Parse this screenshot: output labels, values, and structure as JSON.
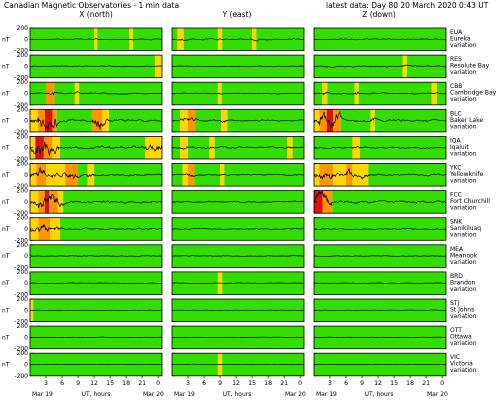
{
  "header": {
    "title": "Canadian Magnetic Observatories - 1 min data",
    "latest": "latest data:  Day  80    20 March 2020    0:43 UT"
  },
  "columns": [
    {
      "label": "X (north)"
    },
    {
      "label": "Y (east)"
    },
    {
      "label": "Z (down)"
    }
  ],
  "y_unit": "nT",
  "footer": {
    "date_start": "Mar 19",
    "date_end": "Mar 20",
    "xlabel": "UT, hours"
  },
  "colors": {
    "quiet": "#33dd00",
    "moderate": "#ffd700",
    "active": "#ff9500",
    "storm": "#dd1111",
    "trace": "#000000",
    "box": "#000000"
  },
  "chart_data": {
    "type": "line",
    "title": "Canadian Magnetic Observatories - 1 min data",
    "xlabel": "UT, hours",
    "ylabel": "nT",
    "x_ticks": [
      3,
      6,
      9,
      12,
      15,
      18,
      21,
      0
    ],
    "xlim": [
      0,
      24.72
    ],
    "ylim": [
      -200,
      200
    ],
    "y_ticks": [
      -200,
      0,
      200
    ],
    "grid": false,
    "stations": [
      {
        "code": "EUA",
        "name": "Eureka",
        "label": "variation",
        "activity": [
          [
            [
              0,
              12,
              "q"
            ],
            [
              12,
              12.6,
              "m"
            ],
            [
              12.6,
              18.6,
              "q"
            ],
            [
              18.6,
              19.3,
              "m"
            ],
            [
              19.3,
              24.72,
              "q"
            ]
          ],
          [
            [
              0,
              1,
              "q"
            ],
            [
              1,
              2.2,
              "m"
            ],
            [
              2.2,
              8.6,
              "q"
            ],
            [
              8.6,
              9.4,
              "m"
            ],
            [
              9.4,
              15,
              "q"
            ],
            [
              15,
              15.8,
              "m"
            ],
            [
              15.8,
              24.72,
              "q"
            ]
          ],
          [
            [
              0,
              24.72,
              "q"
            ]
          ]
        ],
        "amp": [
          [
            10,
            30
          ],
          [
            12,
            45
          ],
          [
            10,
            30
          ]
        ]
      },
      {
        "code": "RES",
        "name": "Resolute Bay",
        "label": "variation",
        "activity": [
          [
            [
              0,
              23.4,
              "q"
            ],
            [
              23.4,
              24.72,
              "m"
            ]
          ],
          [
            [
              0,
              24.72,
              "q"
            ]
          ],
          [
            [
              0,
              16.6,
              "q"
            ],
            [
              16.6,
              17.4,
              "m"
            ],
            [
              17.4,
              24.72,
              "q"
            ]
          ]
        ],
        "amp": [
          [
            10,
            30
          ],
          [
            8,
            25
          ],
          [
            12,
            60
          ]
        ]
      },
      {
        "code": "CBB",
        "name": "Cambridge Bay",
        "label": "variation",
        "activity": [
          [
            [
              0,
              3,
              "q"
            ],
            [
              3,
              4.6,
              "a"
            ],
            [
              4.6,
              8.4,
              "q"
            ],
            [
              8.4,
              9.2,
              "m"
            ],
            [
              9.2,
              24.72,
              "q"
            ]
          ],
          [
            [
              0,
              8.6,
              "q"
            ],
            [
              8.6,
              9.3,
              "m"
            ],
            [
              9.3,
              24.72,
              "q"
            ]
          ],
          [
            [
              0,
              1.5,
              "q"
            ],
            [
              1.5,
              2.5,
              "m"
            ],
            [
              2.5,
              7.6,
              "q"
            ],
            [
              7.6,
              8.4,
              "m"
            ],
            [
              8.4,
              22,
              "q"
            ],
            [
              22,
              23,
              "m"
            ],
            [
              23,
              24.72,
              "q"
            ]
          ]
        ],
        "amp": [
          [
            10,
            60
          ],
          [
            8,
            40
          ],
          [
            12,
            80
          ]
        ]
      },
      {
        "code": "BLC",
        "name": "Baker Lake",
        "label": "variation",
        "activity": [
          [
            [
              0,
              1.5,
              "m"
            ],
            [
              1.5,
              2.8,
              "a"
            ],
            [
              2.8,
              4.2,
              "s"
            ],
            [
              4.2,
              5,
              "a"
            ],
            [
              5,
              11.6,
              "q"
            ],
            [
              11.6,
              13.6,
              "a"
            ],
            [
              13.6,
              14.8,
              "m"
            ],
            [
              14.8,
              24.72,
              "q"
            ]
          ],
          [
            [
              0,
              1.5,
              "q"
            ],
            [
              1.5,
              3,
              "m"
            ],
            [
              3,
              4.4,
              "a"
            ],
            [
              4.4,
              9.2,
              "q"
            ],
            [
              9.2,
              10.4,
              "m"
            ],
            [
              10.4,
              24.72,
              "q"
            ]
          ],
          [
            [
              0,
              1,
              "m"
            ],
            [
              1,
              2.4,
              "a"
            ],
            [
              2.4,
              3.6,
              "s"
            ],
            [
              3.6,
              5,
              "a"
            ],
            [
              5,
              10.6,
              "q"
            ],
            [
              10.6,
              11.4,
              "m"
            ],
            [
              11.4,
              24.72,
              "q"
            ]
          ]
        ],
        "amp": [
          [
            20,
            150
          ],
          [
            15,
            70
          ],
          [
            20,
            130
          ]
        ]
      },
      {
        "code": "IQA",
        "name": "Iqaluit",
        "label": "variation",
        "activity": [
          [
            [
              0,
              1,
              "m"
            ],
            [
              1,
              2.6,
              "s"
            ],
            [
              2.6,
              4.2,
              "a"
            ],
            [
              4.2,
              5.6,
              "m"
            ],
            [
              5.6,
              21.6,
              "q"
            ],
            [
              21.6,
              24.72,
              "m"
            ]
          ],
          [
            [
              0,
              1.5,
              "q"
            ],
            [
              1.5,
              3,
              "m"
            ],
            [
              3,
              7,
              "q"
            ],
            [
              7,
              8,
              "m"
            ],
            [
              8,
              21.6,
              "q"
            ],
            [
              21.6,
              22.6,
              "m"
            ],
            [
              22.6,
              24.72,
              "q"
            ]
          ],
          [
            [
              0,
              7.2,
              "q"
            ],
            [
              7.2,
              8.6,
              "m"
            ],
            [
              8.6,
              24.72,
              "q"
            ]
          ]
        ],
        "amp": [
          [
            25,
            170
          ],
          [
            15,
            60
          ],
          [
            12,
            50
          ]
        ]
      },
      {
        "code": "YKC",
        "name": "Yellowknife",
        "label": "variation",
        "activity": [
          [
            [
              0,
              1.2,
              "m"
            ],
            [
              1.2,
              3,
              "a"
            ],
            [
              3,
              6.6,
              "m"
            ],
            [
              6.6,
              9,
              "a"
            ],
            [
              9,
              10.8,
              "q"
            ],
            [
              10.8,
              12,
              "m"
            ],
            [
              12,
              24.72,
              "q"
            ]
          ],
          [
            [
              0,
              2,
              "q"
            ],
            [
              2,
              3.2,
              "m"
            ],
            [
              3,
              4.2,
              "a"
            ],
            [
              4.2,
              9,
              "q"
            ],
            [
              9,
              9.8,
              "m"
            ],
            [
              9.8,
              24.72,
              "q"
            ]
          ],
          [
            [
              0,
              1,
              "m"
            ],
            [
              1,
              3.6,
              "a"
            ],
            [
              3.6,
              6,
              "m"
            ],
            [
              6,
              7.2,
              "a"
            ],
            [
              7.2,
              10.2,
              "m"
            ],
            [
              10.2,
              24.72,
              "q"
            ]
          ]
        ],
        "amp": [
          [
            15,
            100
          ],
          [
            10,
            50
          ],
          [
            15,
            90
          ]
        ]
      },
      {
        "code": "FCC",
        "name": "Fort Churchill",
        "label": "variation",
        "activity": [
          [
            [
              0,
              1.6,
              "m"
            ],
            [
              1.6,
              2.8,
              "a"
            ],
            [
              2.8,
              3.6,
              "s"
            ],
            [
              3.6,
              5.2,
              "a"
            ],
            [
              5.2,
              6.2,
              "m"
            ],
            [
              6.2,
              24.72,
              "q"
            ]
          ],
          [
            [
              0,
              24.72,
              "q"
            ]
          ],
          [
            [
              0,
              1.6,
              "s"
            ],
            [
              1.6,
              3.4,
              "a"
            ],
            [
              3.4,
              24.72,
              "q"
            ]
          ]
        ],
        "amp": [
          [
            20,
            140
          ],
          [
            10,
            40
          ],
          [
            20,
            120
          ]
        ]
      },
      {
        "code": "SNK",
        "name": "Sanikiluaq",
        "label": "variation",
        "activity": [
          [
            [
              0,
              1.6,
              "m"
            ],
            [
              1.6,
              3.8,
              "a"
            ],
            [
              3.8,
              5.6,
              "m"
            ],
            [
              5.6,
              24.72,
              "q"
            ]
          ],
          [
            [
              0,
              24.72,
              "q"
            ]
          ],
          [
            [
              0,
              24.72,
              "q"
            ]
          ]
        ],
        "amp": [
          [
            15,
            90
          ],
          [
            8,
            30
          ],
          [
            10,
            70
          ]
        ]
      },
      {
        "code": "MEA",
        "name": "Meanook",
        "label": "variation",
        "activity": [
          [
            [
              0,
              24.72,
              "q"
            ]
          ],
          [
            [
              0,
              24.72,
              "q"
            ]
          ],
          [
            [
              0,
              24.72,
              "q"
            ]
          ]
        ],
        "amp": [
          [
            6,
            30
          ],
          [
            6,
            25
          ],
          [
            6,
            50
          ]
        ]
      },
      {
        "code": "BRD",
        "name": "Brandon",
        "label": "variation",
        "activity": [
          [
            [
              0,
              24.72,
              "q"
            ]
          ],
          [
            [
              0,
              8.6,
              "q"
            ],
            [
              8.6,
              9.4,
              "m"
            ],
            [
              9.4,
              24.72,
              "q"
            ]
          ],
          [
            [
              0,
              24.72,
              "q"
            ]
          ]
        ],
        "amp": [
          [
            4,
            15
          ],
          [
            4,
            15
          ],
          [
            4,
            15
          ]
        ]
      },
      {
        "code": "STJ",
        "name": "St Johns",
        "label": "variation",
        "activity": [
          [
            [
              0,
              0.6,
              "m"
            ],
            [
              0.6,
              24.72,
              "q"
            ]
          ],
          [
            [
              0,
              24.72,
              "q"
            ]
          ],
          [
            [
              0,
              24.72,
              "q"
            ]
          ]
        ],
        "amp": [
          [
            4,
            12
          ],
          [
            4,
            10
          ],
          [
            4,
            10
          ]
        ]
      },
      {
        "code": "OTT",
        "name": "Ottawa",
        "label": "variation",
        "activity": [
          [
            [
              0,
              24.72,
              "q"
            ]
          ],
          [
            [
              0,
              24.72,
              "q"
            ]
          ],
          [
            [
              0,
              24.72,
              "q"
            ]
          ]
        ],
        "amp": [
          [
            4,
            10
          ],
          [
            4,
            10
          ],
          [
            4,
            10
          ]
        ]
      },
      {
        "code": "VIC",
        "name": "Victoria",
        "label": "variation",
        "activity": [
          [
            [
              0,
              24.72,
              "q"
            ]
          ],
          [
            [
              0,
              8.6,
              "q"
            ],
            [
              8.6,
              9.4,
              "m"
            ],
            [
              9.4,
              24.72,
              "q"
            ]
          ],
          [
            [
              0,
              24.72,
              "q"
            ]
          ]
        ],
        "amp": [
          [
            4,
            10
          ],
          [
            4,
            10
          ],
          [
            4,
            10
          ]
        ]
      }
    ]
  }
}
